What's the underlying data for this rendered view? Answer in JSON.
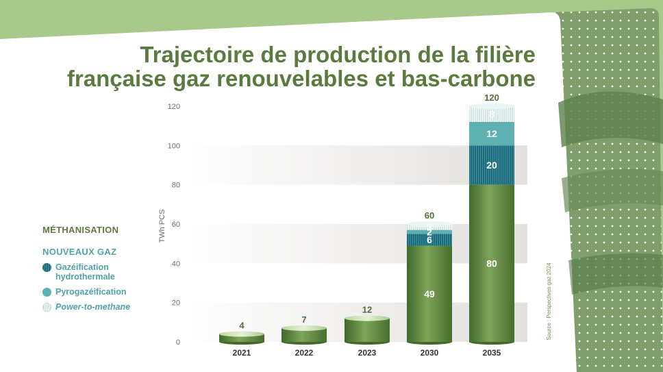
{
  "title": {
    "line1": "Trajectoire de production de la filière",
    "line2": "française gaz renouvelables et bas-carbone"
  },
  "legend": {
    "methanisation": "MÉTHANISATION",
    "nouveaux_gaz": "NOUVEAUX GAZ",
    "items": [
      {
        "label_1": "Gazéification",
        "label_2": "hydrothermale"
      },
      {
        "label_1": "Pyrogazéification",
        "label_2": ""
      },
      {
        "label_1": "Power-to-methane",
        "label_2": ""
      }
    ]
  },
  "source": "Source : Perspectives gaz 2024",
  "colors": {
    "background": "#a9c98c",
    "title": "#5b7a3e",
    "methanisation": "#5f8a3f",
    "hydrothermale": "#1e6a7a",
    "pyrogazeification": "#5fb0b0",
    "power_to_methane": "#d4ecea"
  },
  "chart_data": {
    "type": "bar",
    "stacked": true,
    "ylabel": "TWh PCS",
    "ylim": [
      0,
      120
    ],
    "yticks": [
      0,
      20,
      40,
      60,
      80,
      100,
      120
    ],
    "categories": [
      "2021",
      "2022",
      "2023",
      "2030",
      "2035"
    ],
    "series": [
      {
        "name": "MÉTHANISATION",
        "values": [
          4,
          7,
          12,
          49,
          80
        ]
      },
      {
        "name": "Gazéification hydrothermale",
        "values": [
          0,
          0,
          0,
          6,
          20
        ]
      },
      {
        "name": "Pyrogazéification",
        "values": [
          0,
          0,
          0,
          2,
          12
        ]
      },
      {
        "name": "Power-to-methane",
        "values": [
          0,
          0,
          0,
          3,
          8
        ]
      }
    ],
    "totals": [
      4,
      7,
      12,
      60,
      120
    ],
    "grid": "banded"
  }
}
